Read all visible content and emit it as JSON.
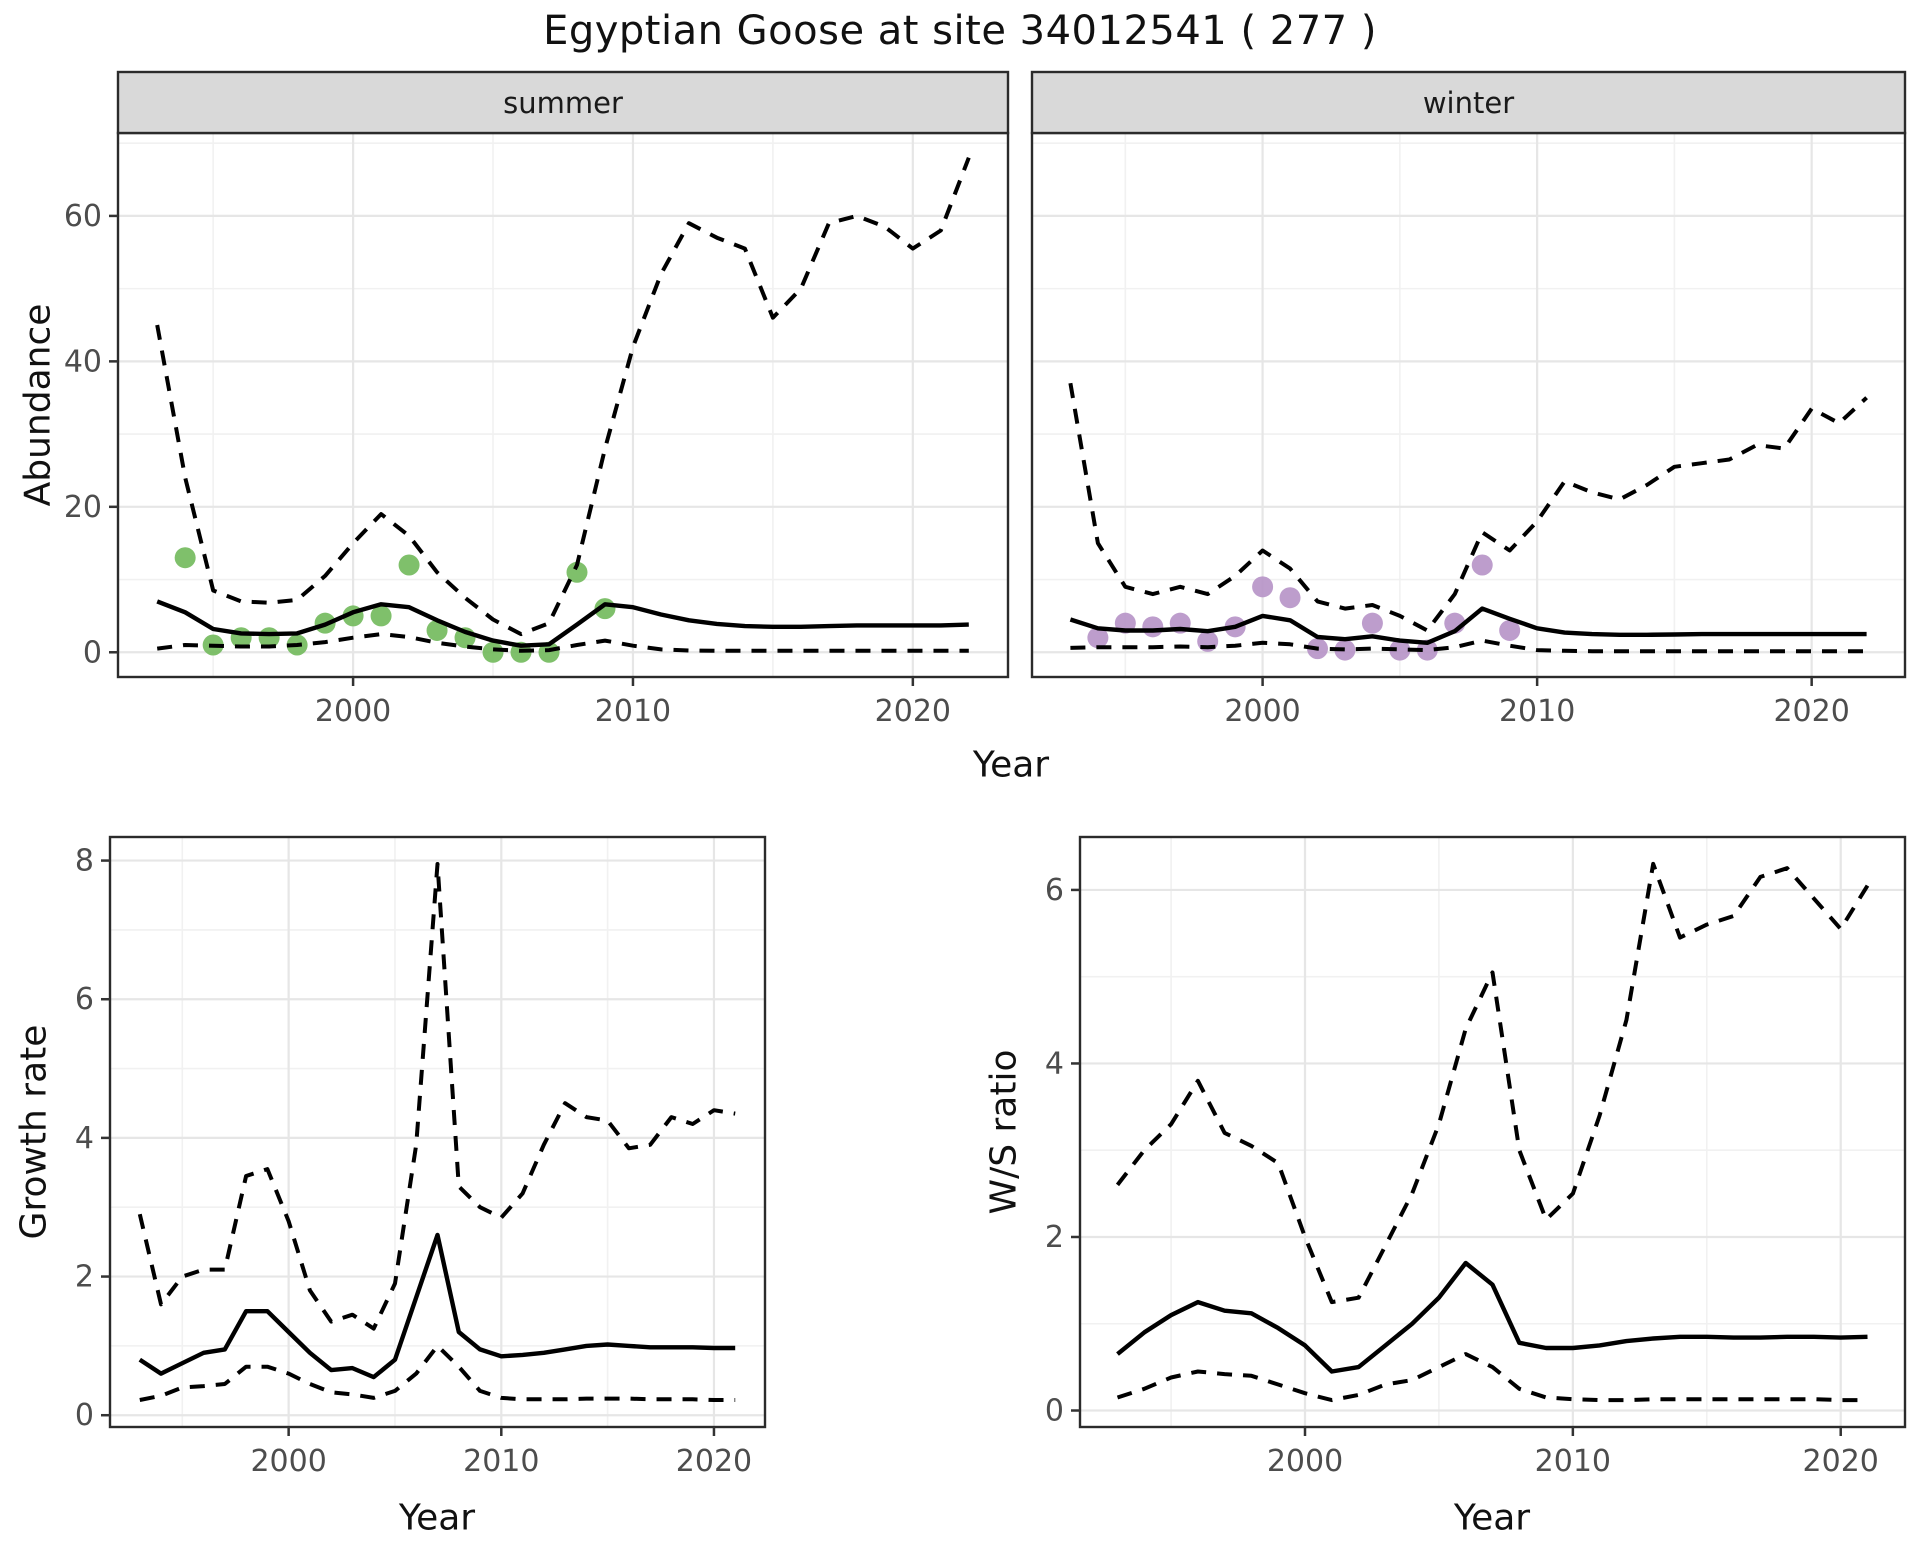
{
  "title": "Egyptian Goose at site 34012541 ( 277 )",
  "colors": {
    "summer_points": "#74bb5e",
    "winter_points": "#b795c8",
    "fit_line": "#000000",
    "ci_line": "#000000",
    "strip_bg": "#d9d9d9",
    "panel_bg": "#ffffff",
    "panel_border": "#2b2b2b",
    "grid_major": "#e6e6e6",
    "grid_minor": "#f1f1f1",
    "tick_mark": "#333333",
    "tick_text": "#4d4d4d"
  },
  "chart_data": [
    {
      "id": "abundance-summer",
      "type": "line",
      "facet": "summer",
      "xlabel": "Year",
      "ylabel": "Abundance",
      "xlim": [
        1991.6,
        2023.4
      ],
      "ylim": [
        -3.4,
        71.4
      ],
      "xticks": [
        2000,
        2010,
        2020
      ],
      "yticks": [
        0,
        20,
        40,
        60
      ],
      "xminor": [
        1995,
        2005,
        2015
      ],
      "yminor": [
        10,
        30,
        50,
        70
      ],
      "grid": true,
      "legend": "none",
      "series": [
        {
          "name": "observed-counts",
          "style": "points",
          "color": "#74bb5e",
          "x": [
            1994,
            1995,
            1996,
            1997,
            1998,
            1999,
            2000,
            2001,
            2002,
            2003,
            2004,
            2005,
            2006,
            2007,
            2008,
            2009
          ],
          "values": [
            13,
            1,
            2,
            2,
            1,
            4,
            5,
            5,
            12,
            3,
            2,
            0,
            0,
            0,
            11,
            6
          ]
        },
        {
          "name": "fitted-abundance",
          "style": "solid",
          "x": [
            1993,
            1994,
            1995,
            1996,
            1997,
            1998,
            1999,
            2000,
            2001,
            2002,
            2003,
            2004,
            2005,
            2006,
            2007,
            2008,
            2009,
            2010,
            2011,
            2012,
            2013,
            2014,
            2015,
            2016,
            2017,
            2018,
            2019,
            2020,
            2021,
            2022
          ],
          "values": [
            7,
            5.5,
            3.2,
            2.6,
            2.5,
            2.6,
            3.8,
            5.5,
            6.6,
            6.2,
            4.4,
            2.8,
            1.6,
            0.9,
            1.1,
            3.8,
            6.6,
            6.2,
            5.2,
            4.4,
            3.9,
            3.6,
            3.5,
            3.5,
            3.6,
            3.7,
            3.7,
            3.7,
            3.7,
            3.8
          ]
        },
        {
          "name": "upper-ci",
          "style": "dashed",
          "x": [
            1993,
            1994,
            1995,
            1996,
            1997,
            1998,
            1999,
            2000,
            2001,
            2002,
            2003,
            2004,
            2005,
            2006,
            2007,
            2008,
            2009,
            2010,
            2011,
            2012,
            2013,
            2014,
            2015,
            2016,
            2017,
            2018,
            2019,
            2020,
            2021,
            2022
          ],
          "values": [
            45,
            24,
            8.5,
            7,
            6.8,
            7.2,
            10.5,
            15,
            19,
            16,
            11,
            7.5,
            4.5,
            2.5,
            4,
            12,
            28,
            42,
            52,
            59,
            57,
            55.5,
            46,
            50,
            59,
            60,
            58.5,
            55.5,
            58,
            68
          ]
        },
        {
          "name": "lower-ci",
          "style": "dashed",
          "x": [
            1993,
            1994,
            1995,
            1996,
            1997,
            1998,
            1999,
            2000,
            2001,
            2002,
            2003,
            2004,
            2005,
            2006,
            2007,
            2008,
            2009,
            2010,
            2011,
            2012,
            2013,
            2014,
            2015,
            2016,
            2017,
            2018,
            2019,
            2020,
            2021,
            2022
          ],
          "values": [
            0.5,
            1,
            0.9,
            0.8,
            0.8,
            1,
            1.4,
            2,
            2.5,
            2.1,
            1.3,
            0.8,
            0.4,
            0.2,
            0.3,
            1,
            1.6,
            0.9,
            0.4,
            0.25,
            0.2,
            0.2,
            0.2,
            0.2,
            0.2,
            0.2,
            0.2,
            0.2,
            0.2,
            0.2
          ]
        }
      ]
    },
    {
      "id": "abundance-winter",
      "type": "line",
      "facet": "winter",
      "xlabel": "Year",
      "ylabel": "Abundance",
      "xlim": [
        1991.6,
        2023.4
      ],
      "ylim": [
        -3.4,
        71.4
      ],
      "xticks": [
        2000,
        2010,
        2020
      ],
      "yticks": [
        0,
        20,
        40,
        60
      ],
      "xminor": [
        1995,
        2005,
        2015
      ],
      "yminor": [
        10,
        30,
        50,
        70
      ],
      "grid": true,
      "legend": "none",
      "series": [
        {
          "name": "observed-counts",
          "style": "points",
          "color": "#b795c8",
          "x": [
            1994,
            1995,
            1996,
            1997,
            1998,
            1999,
            2000,
            2001,
            2002,
            2003,
            2004,
            2005,
            2006,
            2007,
            2008,
            2009
          ],
          "values": [
            2,
            4,
            3.5,
            4,
            1.5,
            3.5,
            9,
            7.5,
            0.5,
            0.3,
            4,
            0.3,
            0.3,
            4,
            12,
            3
          ]
        },
        {
          "name": "fitted-abundance",
          "style": "solid",
          "x": [
            1993,
            1994,
            1995,
            1996,
            1997,
            1998,
            1999,
            2000,
            2001,
            2002,
            2003,
            2004,
            2005,
            2006,
            2007,
            2008,
            2009,
            2010,
            2011,
            2012,
            2013,
            2014,
            2015,
            2016,
            2017,
            2018,
            2019,
            2020,
            2021,
            2022
          ],
          "values": [
            4.5,
            3.3,
            3,
            3,
            3.2,
            2.9,
            3.5,
            5,
            4.4,
            2.1,
            1.8,
            2.2,
            1.6,
            1.3,
            2.9,
            6,
            4.6,
            3.3,
            2.7,
            2.5,
            2.4,
            2.4,
            2.45,
            2.5,
            2.5,
            2.5,
            2.5,
            2.5,
            2.5,
            2.5
          ]
        },
        {
          "name": "upper-ci",
          "style": "dashed",
          "x": [
            1993,
            1994,
            1995,
            1996,
            1997,
            1998,
            1999,
            2000,
            2001,
            2002,
            2003,
            2004,
            2005,
            2006,
            2007,
            2008,
            2009,
            2010,
            2011,
            2012,
            2013,
            2014,
            2015,
            2016,
            2017,
            2018,
            2019,
            2020,
            2021,
            2022
          ],
          "values": [
            37,
            15,
            9,
            8,
            9,
            8,
            10.5,
            14,
            11.5,
            7,
            6,
            6.5,
            5,
            3,
            8,
            16.5,
            14,
            18,
            23.5,
            22,
            21,
            23,
            25.5,
            26,
            26.5,
            28.5,
            28,
            33.5,
            31.5,
            35
          ]
        },
        {
          "name": "lower-ci",
          "style": "dashed",
          "x": [
            1993,
            1994,
            1995,
            1996,
            1997,
            1998,
            1999,
            2000,
            2001,
            2002,
            2003,
            2004,
            2005,
            2006,
            2007,
            2008,
            2009,
            2010,
            2011,
            2012,
            2013,
            2014,
            2015,
            2016,
            2017,
            2018,
            2019,
            2020,
            2021,
            2022
          ],
          "values": [
            0.6,
            0.7,
            0.7,
            0.7,
            0.8,
            0.7,
            0.9,
            1.3,
            1.1,
            0.5,
            0.4,
            0.5,
            0.4,
            0.3,
            0.7,
            1.6,
            0.9,
            0.3,
            0.2,
            0.15,
            0.15,
            0.15,
            0.15,
            0.15,
            0.15,
            0.15,
            0.15,
            0.15,
            0.15,
            0.15
          ]
        }
      ]
    },
    {
      "id": "growth-rate",
      "type": "line",
      "facet": "",
      "xlabel": "Year",
      "ylabel": "Growth rate",
      "xlim": [
        1991.6,
        2022.4
      ],
      "ylim": [
        -0.17,
        8.34
      ],
      "xticks": [
        2000,
        2010,
        2020
      ],
      "yticks": [
        0,
        2,
        4,
        6,
        8
      ],
      "xminor": [
        1995,
        2005,
        2015
      ],
      "yminor": [
        1,
        3,
        5,
        7
      ],
      "grid": true,
      "legend": "none",
      "series": [
        {
          "name": "fitted-growth-rate",
          "style": "solid",
          "x": [
            1993,
            1994,
            1995,
            1996,
            1997,
            1998,
            1999,
            2000,
            2001,
            2002,
            2003,
            2004,
            2005,
            2006,
            2007,
            2008,
            2009,
            2010,
            2011,
            2012,
            2013,
            2014,
            2015,
            2016,
            2017,
            2018,
            2019,
            2020,
            2021
          ],
          "values": [
            0.8,
            0.6,
            0.75,
            0.9,
            0.95,
            1.5,
            1.5,
            1.2,
            0.9,
            0.65,
            0.68,
            0.55,
            0.8,
            1.7,
            2.6,
            1.2,
            0.95,
            0.85,
            0.87,
            0.9,
            0.95,
            1,
            1.02,
            1,
            0.98,
            0.98,
            0.98,
            0.97,
            0.97
          ]
        },
        {
          "name": "upper-ci",
          "style": "dashed",
          "x": [
            1993,
            1994,
            1995,
            1996,
            1997,
            1998,
            1999,
            2000,
            2001,
            2002,
            2003,
            2004,
            2005,
            2006,
            2007,
            2008,
            2009,
            2010,
            2011,
            2012,
            2013,
            2014,
            2015,
            2016,
            2017,
            2018,
            2019,
            2020,
            2021
          ],
          "values": [
            2.9,
            1.6,
            2,
            2.1,
            2.1,
            3.45,
            3.55,
            2.8,
            1.8,
            1.35,
            1.45,
            1.25,
            1.9,
            3.9,
            7.95,
            3.3,
            3,
            2.85,
            3.2,
            3.9,
            4.5,
            4.3,
            4.25,
            3.85,
            3.9,
            4.3,
            4.2,
            4.4,
            4.35
          ]
        },
        {
          "name": "lower-ci",
          "style": "dashed",
          "x": [
            1993,
            1994,
            1995,
            1996,
            1997,
            1998,
            1999,
            2000,
            2001,
            2002,
            2003,
            2004,
            2005,
            2006,
            2007,
            2008,
            2009,
            2010,
            2011,
            2012,
            2013,
            2014,
            2015,
            2016,
            2017,
            2018,
            2019,
            2020,
            2021
          ],
          "values": [
            0.22,
            0.28,
            0.4,
            0.42,
            0.45,
            0.7,
            0.7,
            0.6,
            0.45,
            0.33,
            0.3,
            0.25,
            0.35,
            0.6,
            1,
            0.7,
            0.35,
            0.25,
            0.23,
            0.23,
            0.23,
            0.24,
            0.24,
            0.24,
            0.23,
            0.23,
            0.23,
            0.22,
            0.22
          ]
        }
      ]
    },
    {
      "id": "ws-ratio",
      "type": "line",
      "facet": "",
      "xlabel": "Year",
      "ylabel": "W/S ratio",
      "xlim": [
        1991.6,
        2022.4
      ],
      "ylim": [
        -0.19,
        6.61
      ],
      "xticks": [
        2000,
        2010,
        2020
      ],
      "yticks": [
        0,
        2,
        4,
        6
      ],
      "xminor": [
        1995,
        2005,
        2015
      ],
      "yminor": [
        1,
        3,
        5
      ],
      "grid": true,
      "legend": "none",
      "series": [
        {
          "name": "fitted-ws-ratio",
          "style": "solid",
          "x": [
            1993,
            1994,
            1995,
            1996,
            1997,
            1998,
            1999,
            2000,
            2001,
            2002,
            2003,
            2004,
            2005,
            2006,
            2007,
            2008,
            2009,
            2010,
            2011,
            2012,
            2013,
            2014,
            2015,
            2016,
            2017,
            2018,
            2019,
            2020,
            2021
          ],
          "values": [
            0.65,
            0.9,
            1.1,
            1.25,
            1.15,
            1.12,
            0.95,
            0.75,
            0.45,
            0.5,
            0.75,
            1,
            1.3,
            1.7,
            1.45,
            0.78,
            0.72,
            0.72,
            0.75,
            0.8,
            0.83,
            0.85,
            0.85,
            0.84,
            0.84,
            0.85,
            0.85,
            0.84,
            0.85
          ]
        },
        {
          "name": "upper-ci",
          "style": "dashed",
          "x": [
            1993,
            1994,
            1995,
            1996,
            1997,
            1998,
            1999,
            2000,
            2001,
            2002,
            2003,
            2004,
            2005,
            2006,
            2007,
            2008,
            2009,
            2010,
            2011,
            2012,
            2013,
            2014,
            2015,
            2016,
            2017,
            2018,
            2019,
            2020,
            2021
          ],
          "values": [
            2.6,
            3,
            3.3,
            3.8,
            3.2,
            3.05,
            2.85,
            2,
            1.25,
            1.3,
            1.9,
            2.5,
            3.3,
            4.4,
            5.05,
            3,
            2.2,
            2.5,
            3.4,
            4.5,
            6.3,
            5.45,
            5.6,
            5.7,
            6.15,
            6.25,
            5.9,
            5.55,
            6.05
          ]
        },
        {
          "name": "lower-ci",
          "style": "dashed",
          "x": [
            1993,
            1994,
            1995,
            1996,
            1997,
            1998,
            1999,
            2000,
            2001,
            2002,
            2003,
            2004,
            2005,
            2006,
            2007,
            2008,
            2009,
            2010,
            2011,
            2012,
            2013,
            2014,
            2015,
            2016,
            2017,
            2018,
            2019,
            2020,
            2021
          ],
          "values": [
            0.15,
            0.25,
            0.38,
            0.45,
            0.42,
            0.4,
            0.3,
            0.2,
            0.12,
            0.18,
            0.3,
            0.35,
            0.5,
            0.65,
            0.5,
            0.25,
            0.15,
            0.13,
            0.12,
            0.12,
            0.13,
            0.13,
            0.13,
            0.13,
            0.13,
            0.13,
            0.13,
            0.12,
            0.12
          ]
        }
      ]
    }
  ]
}
